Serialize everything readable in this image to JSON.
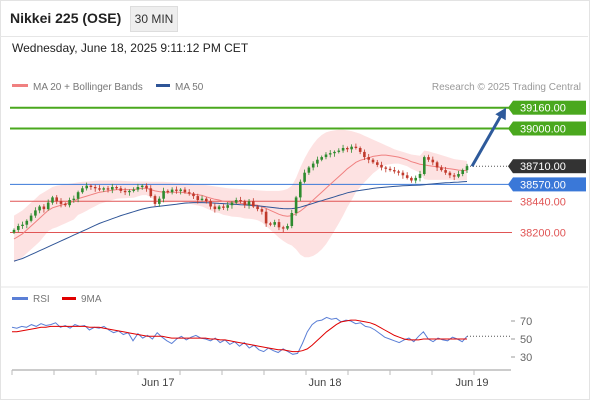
{
  "header": {
    "title": "Nikkei 225 (OSE)",
    "timeframe_button": "30 MIN",
    "subtitle": "Wednesday, June 18, 2025 9:11:12 PM CET"
  },
  "legend": {
    "ma20_bb": "MA 20 + Bollinger Bands",
    "ma50": "MA 50",
    "credit": "Research © 2025 Trading Central"
  },
  "colors": {
    "candle_up": "#2e8b2e",
    "candle_down": "#c0392b",
    "ma20": "#f08080",
    "bollinger_fill": "#fde2e2",
    "ma50": "#2f5597",
    "target_green": "#4aa81e",
    "pivot_blue": "#3a78d8",
    "support_red": "#e05555",
    "rsi": "#5b7fd6",
    "rsi_ma": "#e00000",
    "arrow": "#2e5a9b",
    "last_price_box": "#333333"
  },
  "chart_data": [
    {
      "type": "candlestick",
      "title": "Nikkei 225 (OSE)",
      "timeframe": "30 MIN",
      "x_tick_labels": [
        "Jun 17",
        "Jun 18",
        "Jun 19"
      ],
      "ylim": [
        37850,
        39250
      ],
      "price_levels": [
        {
          "label": "39160.00",
          "value": 39160,
          "role": "target",
          "color": "#4aa81e"
        },
        {
          "label": "39000.00",
          "value": 39000,
          "role": "target",
          "color": "#4aa81e"
        },
        {
          "label": "38710.00",
          "value": 38710,
          "role": "last price",
          "color": "#333333"
        },
        {
          "label": "38570.00",
          "value": 38570,
          "role": "pivot",
          "color": "#3a78d8"
        },
        {
          "label": "38440.00",
          "value": 38440,
          "role": "support",
          "color": "#e05555"
        },
        {
          "label": "38200.00",
          "value": 38200,
          "role": "support",
          "color": "#e05555"
        }
      ],
      "close": [
        38220,
        38250,
        38260,
        38290,
        38330,
        38370,
        38400,
        38380,
        38430,
        38470,
        38440,
        38420,
        38410,
        38450,
        38460,
        38510,
        38540,
        38560,
        38550,
        38540,
        38530,
        38540,
        38530,
        38550,
        38540,
        38520,
        38510,
        38520,
        38530,
        38550,
        38560,
        38540,
        38480,
        38420,
        38460,
        38520,
        38510,
        38530,
        38520,
        38530,
        38510,
        38500,
        38480,
        38450,
        38460,
        38440,
        38400,
        38380,
        38400,
        38390,
        38410,
        38430,
        38450,
        38440,
        38410,
        38440,
        38400,
        38380,
        38360,
        38270,
        38260,
        38280,
        38240,
        38230,
        38250,
        38350,
        38470,
        38590,
        38660,
        38700,
        38730,
        38760,
        38780,
        38800,
        38810,
        38820,
        38830,
        38850,
        38840,
        38860,
        38850,
        38820,
        38780,
        38760,
        38740,
        38720,
        38700,
        38690,
        38680,
        38670,
        38660,
        38640,
        38620,
        38600,
        38620,
        38650,
        38780,
        38760,
        38740,
        38700,
        38680,
        38660,
        38640,
        38630,
        38650,
        38680,
        38710
      ],
      "ma20": [
        38150,
        38170,
        38190,
        38220,
        38250,
        38280,
        38310,
        38340,
        38370,
        38390,
        38400,
        38410,
        38420,
        38430,
        38440,
        38460,
        38470,
        38480,
        38490,
        38500,
        38510,
        38515,
        38520,
        38525,
        38530,
        38530,
        38530,
        38530,
        38530,
        38535,
        38540,
        38540,
        38530,
        38520,
        38515,
        38510,
        38510,
        38510,
        38510,
        38510,
        38505,
        38500,
        38495,
        38490,
        38485,
        38475,
        38465,
        38455,
        38450,
        38440,
        38435,
        38430,
        38428,
        38425,
        38420,
        38418,
        38415,
        38410,
        38400,
        38385,
        38370,
        38355,
        38340,
        38330,
        38325,
        38330,
        38345,
        38365,
        38390,
        38420,
        38450,
        38480,
        38510,
        38540,
        38570,
        38600,
        38630,
        38660,
        38690,
        38715,
        38740,
        38755,
        38765,
        38775,
        38785,
        38790,
        38795,
        38795,
        38790,
        38785,
        38780,
        38770,
        38760,
        38745,
        38735,
        38725,
        38720,
        38715,
        38710,
        38705,
        38700,
        38695,
        38690,
        38685,
        38680,
        38678,
        38676
      ],
      "bb_upper": [
        38330,
        38350,
        38370,
        38400,
        38430,
        38460,
        38490,
        38510,
        38530,
        38550,
        38560,
        38565,
        38570,
        38575,
        38580,
        38585,
        38590,
        38592,
        38595,
        38598,
        38600,
        38600,
        38600,
        38600,
        38600,
        38598,
        38596,
        38594,
        38592,
        38592,
        38592,
        38592,
        38590,
        38590,
        38590,
        38590,
        38588,
        38586,
        38584,
        38582,
        38580,
        38578,
        38575,
        38572,
        38570,
        38565,
        38560,
        38555,
        38550,
        38545,
        38540,
        38538,
        38536,
        38534,
        38532,
        38530,
        38528,
        38525,
        38522,
        38520,
        38520,
        38520,
        38520,
        38525,
        38535,
        38560,
        38620,
        38700,
        38770,
        38830,
        38880,
        38920,
        38950,
        38970,
        38980,
        38985,
        38990,
        38990,
        38985,
        38980,
        38970,
        38960,
        38945,
        38930,
        38915,
        38900,
        38885,
        38870,
        38855,
        38840,
        38830,
        38820,
        38810,
        38800,
        38795,
        38790,
        38830,
        38825,
        38815,
        38805,
        38795,
        38785,
        38775,
        38765,
        38760,
        38755,
        38750
      ],
      "bb_lower": [
        37970,
        37990,
        38010,
        38040,
        38070,
        38100,
        38130,
        38170,
        38210,
        38230,
        38240,
        38255,
        38270,
        38285,
        38300,
        38335,
        38350,
        38368,
        38385,
        38402,
        38420,
        38430,
        38440,
        38450,
        38460,
        38462,
        38464,
        38466,
        38468,
        38478,
        38488,
        38488,
        38470,
        38450,
        38440,
        38430,
        38432,
        38434,
        38436,
        38438,
        38430,
        38422,
        38415,
        38408,
        38400,
        38385,
        38370,
        38355,
        38350,
        38335,
        38330,
        38322,
        38320,
        38316,
        38308,
        38306,
        38302,
        38295,
        38278,
        38250,
        38220,
        38190,
        38160,
        38135,
        38115,
        38100,
        38070,
        38030,
        38010,
        38010,
        38020,
        38040,
        38070,
        38110,
        38160,
        38215,
        38270,
        38330,
        38395,
        38450,
        38510,
        38550,
        38585,
        38620,
        38655,
        38680,
        38705,
        38720,
        38725,
        38730,
        38730,
        38720,
        38710,
        38690,
        38675,
        38660,
        38610,
        38605,
        38605,
        38605,
        38605,
        38605,
        38605,
        38605,
        38600,
        38601,
        38602
      ],
      "ma50": [
        37980,
        37990,
        38000,
        38015,
        38030,
        38045,
        38060,
        38075,
        38090,
        38105,
        38120,
        38135,
        38150,
        38165,
        38180,
        38195,
        38210,
        38225,
        38240,
        38255,
        38270,
        38282,
        38294,
        38306,
        38318,
        38330,
        38340,
        38350,
        38360,
        38370,
        38380,
        38388,
        38394,
        38398,
        38402,
        38406,
        38410,
        38414,
        38418,
        38422,
        38426,
        38428,
        38430,
        38430,
        38430,
        38429,
        38428,
        38426,
        38424,
        38422,
        38420,
        38418,
        38416,
        38414,
        38412,
        38410,
        38408,
        38405,
        38402,
        38398,
        38394,
        38390,
        38386,
        38384,
        38383,
        38384,
        38388,
        38395,
        38405,
        38415,
        38425,
        38435,
        38445,
        38455,
        38465,
        38475,
        38485,
        38495,
        38505,
        38512,
        38519,
        38524,
        38529,
        38534,
        38539,
        38543,
        38546,
        38549,
        38552,
        38555,
        38557,
        38559,
        38561,
        38562,
        38563,
        38565,
        38568,
        38571,
        38574,
        38577,
        38580,
        38582,
        38584,
        38586,
        38588,
        38590,
        38592
      ],
      "arrow": {
        "from_value": 38710,
        "to_value": 39160,
        "direction": "up"
      }
    },
    {
      "type": "line",
      "legend": [
        "RSI",
        "9MA"
      ],
      "y_tick_labels": [
        "70",
        "50",
        "30"
      ],
      "ylim": [
        20,
        80
      ],
      "rsi": [
        63,
        62,
        64,
        63,
        66,
        64,
        67,
        65,
        66,
        68,
        63,
        65,
        62,
        66,
        64,
        65,
        60,
        63,
        62,
        64,
        60,
        57,
        59,
        55,
        57,
        48,
        56,
        51,
        54,
        50,
        57,
        52,
        48,
        45,
        50,
        53,
        49,
        52,
        54,
        51,
        50,
        48,
        51,
        46,
        49,
        44,
        47,
        42,
        46,
        40,
        43,
        38,
        36,
        40,
        37,
        35,
        39,
        36,
        33,
        34,
        45,
        58,
        66,
        70,
        71,
        74,
        72,
        73,
        69,
        71,
        70,
        67,
        68,
        64,
        63,
        60,
        56,
        52,
        50,
        48,
        46,
        49,
        51,
        47,
        53,
        58,
        50,
        47,
        51,
        49,
        48,
        52,
        50,
        47,
        53
      ],
      "rsi_ma": [
        58,
        58,
        59,
        60,
        61,
        62,
        63,
        63,
        64,
        64,
        64,
        64,
        64,
        64,
        64,
        64,
        63,
        63,
        63,
        62,
        61,
        60,
        59,
        58,
        57,
        56,
        55,
        54,
        53,
        53,
        53,
        53,
        52,
        51,
        51,
        51,
        51,
        51,
        51,
        51,
        51,
        50,
        50,
        49,
        49,
        48,
        47,
        46,
        45,
        44,
        43,
        42,
        41,
        40,
        39,
        38,
        38,
        37,
        36,
        36,
        37,
        39,
        43,
        48,
        53,
        58,
        62,
        66,
        69,
        70,
        71,
        71,
        70,
        69,
        68,
        66,
        63,
        60,
        57,
        54,
        52,
        50,
        49,
        49,
        49,
        50,
        50,
        50,
        50,
        50,
        50,
        50,
        50,
        50,
        50
      ]
    }
  ]
}
